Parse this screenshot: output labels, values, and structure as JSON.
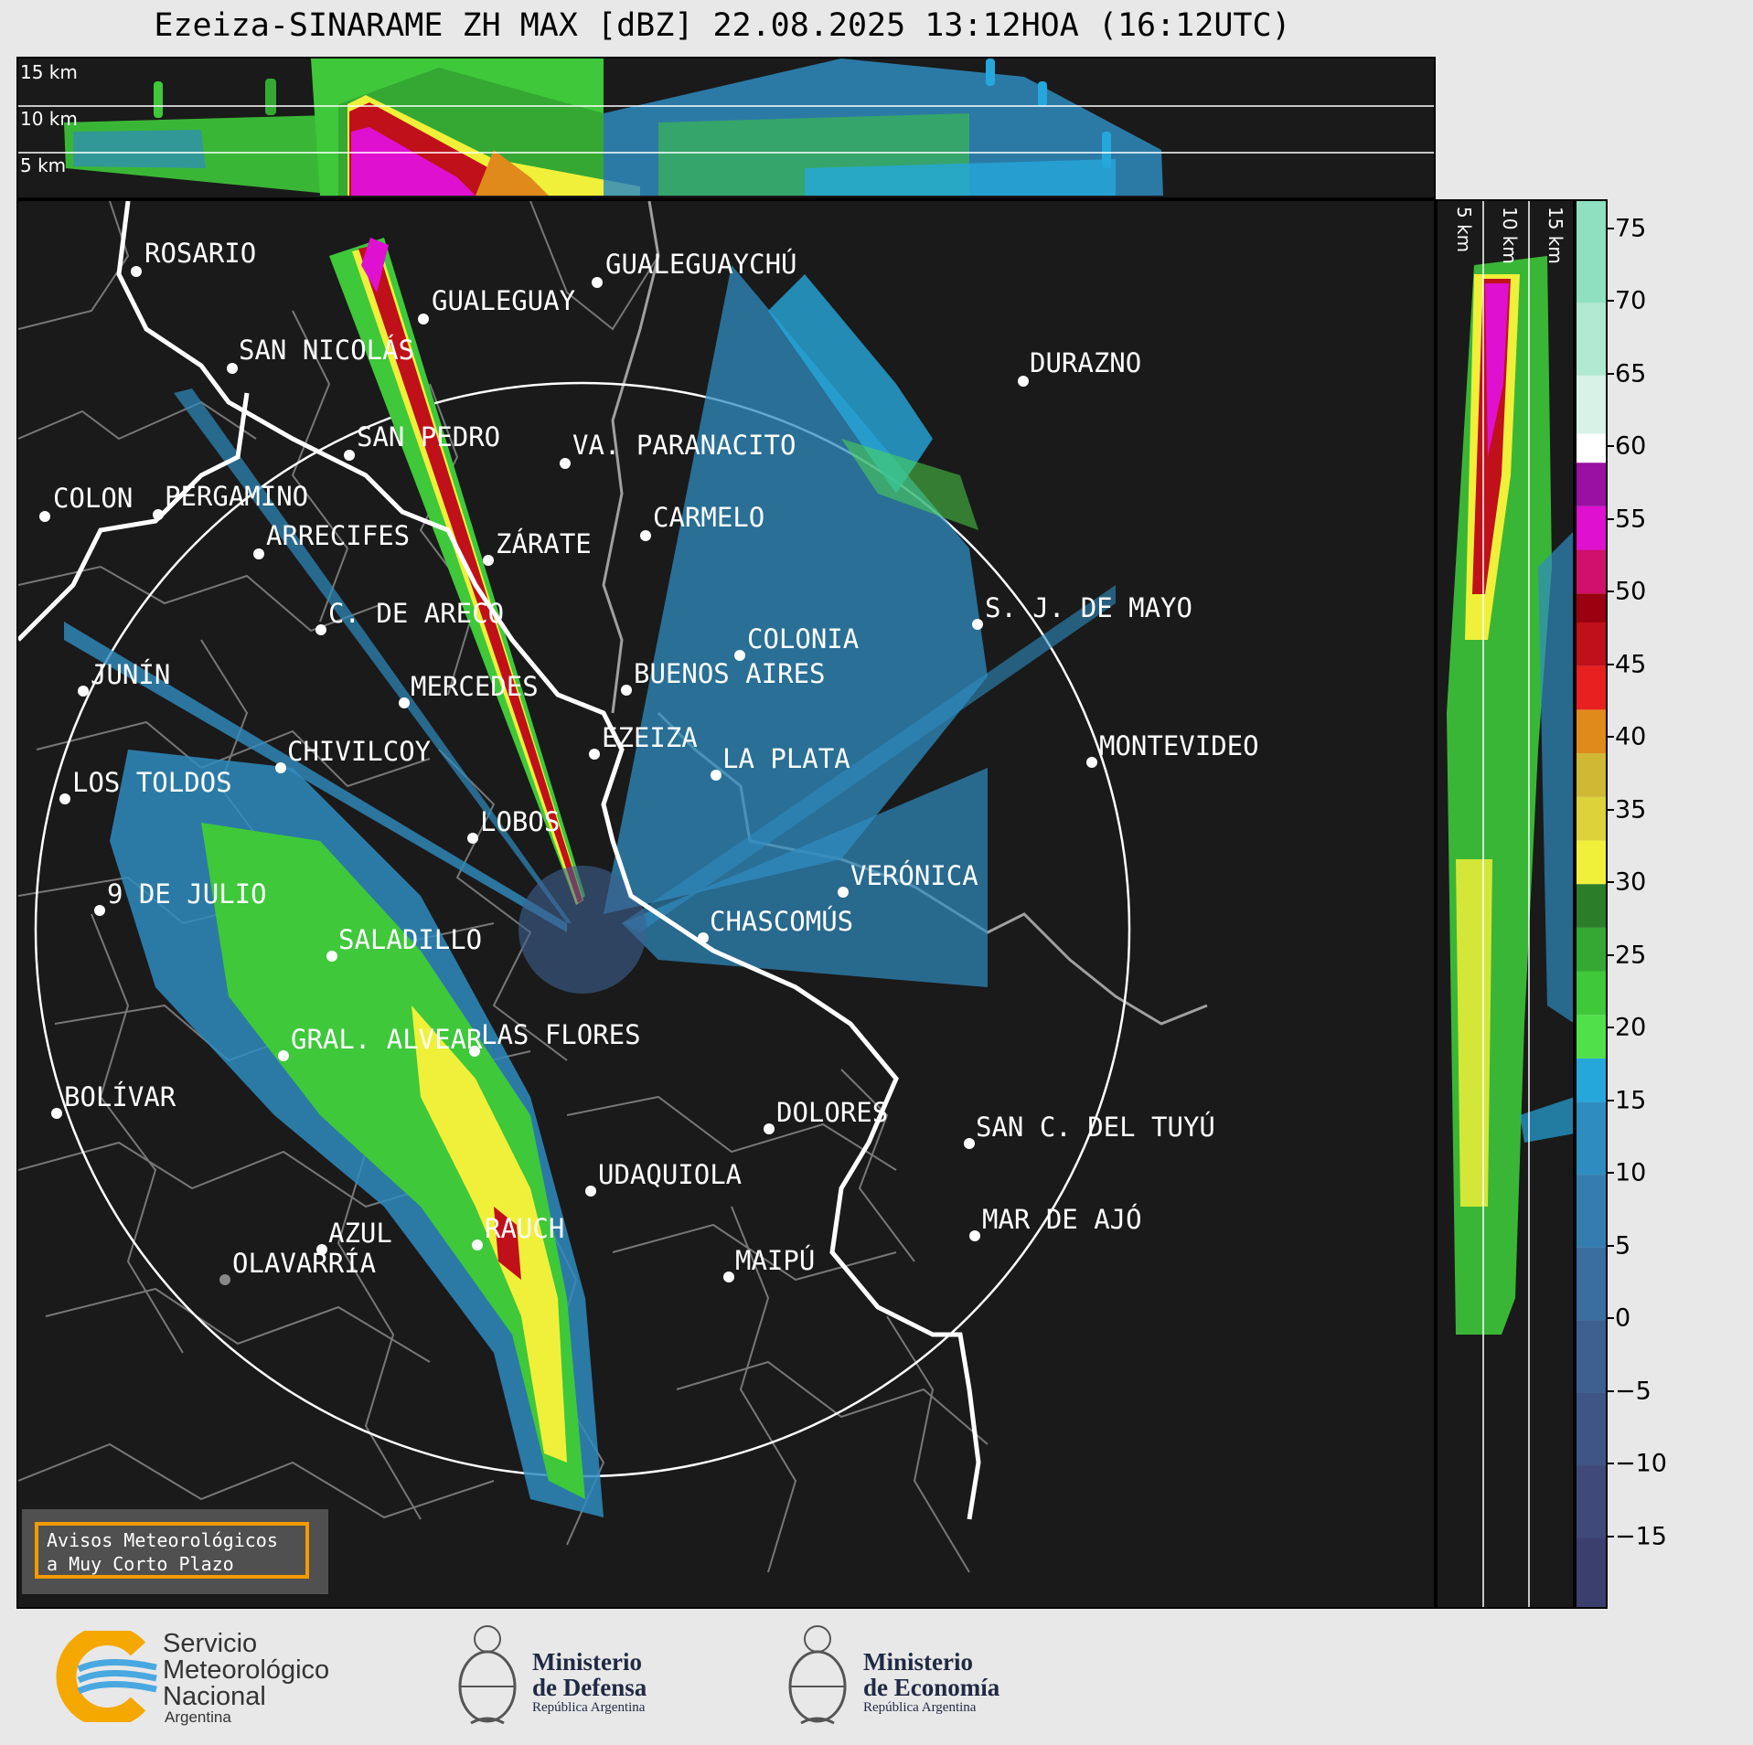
{
  "title": "Ezeiza-SINARAME ZH MAX [dBZ] 22.08.2025 13:12HOA (16:12UTC)",
  "top_altitude_labels": [
    "15 km",
    "10 km",
    "5 km"
  ],
  "side_altitude_labels": [
    "5 km",
    "10 km",
    "15 km"
  ],
  "colorbar": {
    "ticks": [
      "75",
      "70",
      "65",
      "60",
      "55",
      "50",
      "45",
      "40",
      "35",
      "30",
      "25",
      "20",
      "15",
      "10",
      "5",
      "0",
      "−5",
      "−10",
      "−15"
    ],
    "range": [
      -20,
      77
    ],
    "bands": [
      {
        "from": -20,
        "to": -15,
        "color": "#3a3f6e"
      },
      {
        "from": -15,
        "to": -10,
        "color": "#3f4a7a"
      },
      {
        "from": -10,
        "to": -5,
        "color": "#3e5585"
      },
      {
        "from": -5,
        "to": 0,
        "color": "#3d6090"
      },
      {
        "from": 0,
        "to": 5,
        "color": "#3a6ea0"
      },
      {
        "from": 5,
        "to": 10,
        "color": "#357db0"
      },
      {
        "from": 10,
        "to": 15,
        "color": "#2f8cc0"
      },
      {
        "from": 15,
        "to": 18,
        "color": "#26a7db"
      },
      {
        "from": 18,
        "to": 21,
        "color": "#4fe04a"
      },
      {
        "from": 21,
        "to": 24,
        "color": "#3ec83a"
      },
      {
        "from": 24,
        "to": 27,
        "color": "#34a832"
      },
      {
        "from": 27,
        "to": 30,
        "color": "#2b7d2a"
      },
      {
        "from": 30,
        "to": 33,
        "color": "#f0f03a"
      },
      {
        "from": 33,
        "to": 36,
        "color": "#dcd23a"
      },
      {
        "from": 36,
        "to": 39,
        "color": "#cfb834"
      },
      {
        "from": 39,
        "to": 42,
        "color": "#e08a1c"
      },
      {
        "from": 42,
        "to": 45,
        "color": "#e82020"
      },
      {
        "from": 45,
        "to": 48,
        "color": "#c0101a"
      },
      {
        "from": 48,
        "to": 50,
        "color": "#9a0010"
      },
      {
        "from": 50,
        "to": 53,
        "color": "#d0106a"
      },
      {
        "from": 53,
        "to": 56,
        "color": "#e010d0"
      },
      {
        "from": 56,
        "to": 59,
        "color": "#9a10a0"
      },
      {
        "from": 59,
        "to": 61,
        "color": "#ffffff"
      },
      {
        "from": 61,
        "to": 65,
        "color": "#d8f2e8"
      },
      {
        "from": 65,
        "to": 70,
        "color": "#b0e8d2"
      },
      {
        "from": 70,
        "to": 77,
        "color": "#8ee0c0"
      }
    ]
  },
  "cities": [
    {
      "name": "ROSARIO"
    },
    {
      "name": "GUALEGUAYCHÚ"
    },
    {
      "name": "GUALEGUAY"
    },
    {
      "name": "SAN NICOLÁS"
    },
    {
      "name": "DURAZNO"
    },
    {
      "name": "SAN PEDRO"
    },
    {
      "name": "VA. PARANACITO"
    },
    {
      "name": "COLON"
    },
    {
      "name": "PERGAMINO"
    },
    {
      "name": "CARMELO"
    },
    {
      "name": "ARRECIFES"
    },
    {
      "name": "ZÁRATE"
    },
    {
      "name": "C. DE ARECO"
    },
    {
      "name": "S. J. DE MAYO"
    },
    {
      "name": "COLONIA"
    },
    {
      "name": "JUNÍN"
    },
    {
      "name": "BUENOS AIRES"
    },
    {
      "name": "MERCEDES"
    },
    {
      "name": "EZEIZA"
    },
    {
      "name": "MONTEVIDEO"
    },
    {
      "name": "CHIVILCOY"
    },
    {
      "name": "LA PLATA"
    },
    {
      "name": "LOS TOLDOS"
    },
    {
      "name": "LOBOS"
    },
    {
      "name": "VERÓNICA"
    },
    {
      "name": "9 DE JULIO"
    },
    {
      "name": "CHASCOMÚS"
    },
    {
      "name": "SALADILLO"
    },
    {
      "name": "GRAL. ALVEAR"
    },
    {
      "name": "LAS FLORES"
    },
    {
      "name": "BOLÍVAR"
    },
    {
      "name": "DOLORES"
    },
    {
      "name": "SAN C. DEL TUYÚ"
    },
    {
      "name": "UDAQUIOLA"
    },
    {
      "name": "MAR DE AJÓ"
    },
    {
      "name": "AZUL"
    },
    {
      "name": "RAUCH"
    },
    {
      "name": "OLAVARRÍA"
    },
    {
      "name": "MAIPÚ"
    }
  ],
  "warning_box": {
    "line1": "Avisos Meteorológicos",
    "line2": "a Muy Corto Plazo"
  },
  "footer": {
    "smn": {
      "line1": "Servicio",
      "line2": "Meteorológico",
      "line3": "Nacional",
      "sub": "Argentina"
    },
    "defensa": {
      "line1": "Ministerio",
      "line2": "de Defensa",
      "sub": "República Argentina"
    },
    "economia": {
      "line1": "Ministerio",
      "line2": "de Economía",
      "sub": "República Argentina"
    }
  }
}
